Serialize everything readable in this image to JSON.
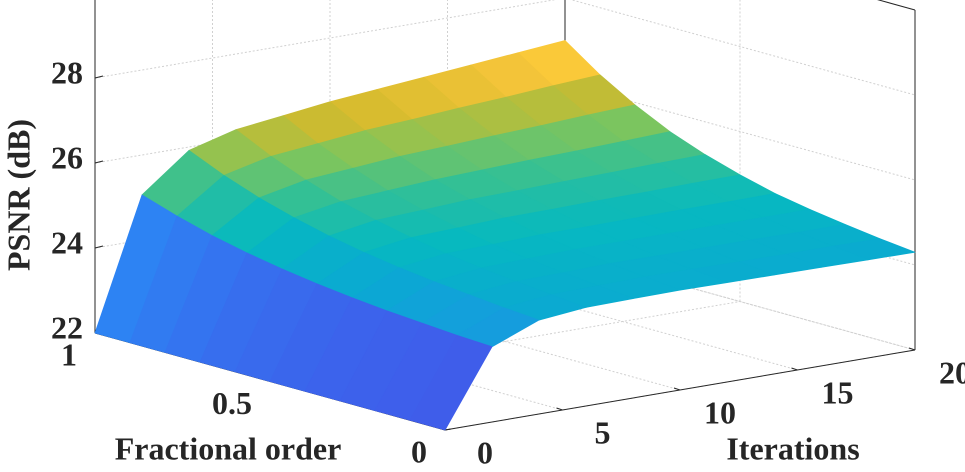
{
  "chart_data": {
    "type": "surface",
    "xlabel": "Iterations",
    "ylabel": "Fractional order",
    "zlabel": "PSNR (dB)",
    "x": [
      0,
      2,
      4,
      6,
      8,
      10,
      12,
      14,
      16,
      18,
      20
    ],
    "y": [
      0,
      0.1,
      0.2,
      0.3,
      0.4,
      0.5,
      0.6,
      0.7,
      0.8,
      0.9,
      1
    ],
    "z": [
      [
        22,
        23.77,
        24.21,
        24.32,
        24.34,
        24.35,
        24.34,
        24.33,
        24.32,
        24.31,
        24.3
      ],
      [
        22,
        23.81,
        24.27,
        24.39,
        24.41,
        24.43,
        24.42,
        24.41,
        24.4,
        24.4,
        24.39
      ],
      [
        22,
        23.87,
        24.35,
        24.47,
        24.49,
        24.52,
        24.51,
        24.51,
        24.51,
        24.5,
        24.5
      ],
      [
        22,
        23.93,
        24.43,
        24.56,
        24.59,
        24.62,
        24.62,
        24.62,
        24.62,
        24.62,
        24.62
      ],
      [
        22,
        24.01,
        24.53,
        24.67,
        24.7,
        24.74,
        24.74,
        24.75,
        24.76,
        24.76,
        24.77
      ],
      [
        22,
        24.11,
        24.66,
        24.82,
        24.86,
        24.91,
        24.92,
        24.94,
        24.95,
        24.97,
        24.98
      ],
      [
        22,
        24.23,
        24.82,
        25.0,
        25.05,
        25.11,
        25.13,
        25.16,
        25.18,
        25.21,
        25.23
      ],
      [
        22,
        24.38,
        25.02,
        25.21,
        25.28,
        25.35,
        25.39,
        25.43,
        25.46,
        25.5,
        25.54
      ],
      [
        22,
        24.56,
        25.26,
        25.49,
        25.58,
        25.67,
        25.72,
        25.78,
        25.83,
        25.89,
        25.94
      ],
      [
        22,
        24.79,
        25.56,
        25.82,
        25.93,
        26.05,
        26.12,
        26.2,
        26.27,
        26.35,
        26.42
      ],
      [
        22,
        25.06,
        25.92,
        26.22,
        26.36,
        26.5,
        26.6,
        26.7,
        26.8,
        26.9,
        27.0
      ]
    ],
    "xlim": [
      0,
      20
    ],
    "xticks": [
      0,
      5,
      10,
      15,
      20
    ],
    "ylim": [
      0,
      1
    ],
    "yticks": [
      0,
      0.5,
      1
    ],
    "zlim": [
      22,
      30
    ],
    "zticks": [
      22,
      24,
      26,
      28
    ],
    "grid": true,
    "colormap": "parula"
  }
}
